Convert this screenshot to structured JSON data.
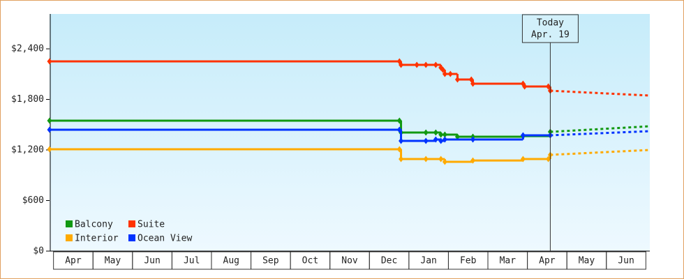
{
  "chart_data": {
    "type": "step-line",
    "months": [
      "Apr",
      "May",
      "Jun",
      "Jul",
      "Aug",
      "Sep",
      "Oct",
      "Nov",
      "Dec",
      "Jan",
      "Feb",
      "Mar",
      "Apr",
      "May",
      "Jun"
    ],
    "xlim": [
      -0.1,
      15.1
    ],
    "ylim": [
      0,
      2814
    ],
    "yticks": [
      {
        "value": 0,
        "label": "$0"
      },
      {
        "value": 600,
        "label": "$600"
      },
      {
        "value": 1200,
        "label": "$1,200"
      },
      {
        "value": 1800,
        "label": "$1,800"
      },
      {
        "value": 2400,
        "label": "$2,400"
      }
    ],
    "annotation": {
      "lines": [
        "Today",
        "Apr. 19"
      ],
      "x": 12.58
    },
    "series": [
      {
        "name": "Balcony",
        "color": "#119911",
        "x": [
          -0.1,
          8.76,
          8.8,
          9.43,
          9.68,
          9.81,
          9.91,
          10.23,
          10.62,
          11.89,
          12.58
        ],
        "values": [
          1548,
          1548,
          1407,
          1407,
          1407,
          1382,
          1382,
          1357,
          1357,
          1365,
          1415
        ],
        "forecast_x": [
          12.58,
          15.09
        ],
        "forecast_values": [
          1415,
          1481
        ]
      },
      {
        "name": "Suite",
        "color": "#ff3300",
        "x": [
          -0.1,
          8.76,
          8.8,
          9.2,
          9.43,
          9.68,
          9.81,
          9.86,
          9.91,
          10.05,
          10.23,
          10.58,
          10.62,
          11.89,
          11.93,
          12.53,
          12.58
        ],
        "values": [
          2251,
          2251,
          2210,
          2210,
          2210,
          2210,
          2177,
          2152,
          2102,
          2102,
          2036,
          2036,
          1986,
          1986,
          1953,
          1953,
          1903
        ],
        "forecast_x": [
          12.58,
          15.09
        ],
        "forecast_values": [
          1903,
          1846
        ]
      },
      {
        "name": "Interior",
        "color": "#ffaa00",
        "x": [
          -0.1,
          8.76,
          8.8,
          9.43,
          9.81,
          9.91,
          10.62,
          11.89,
          12.53,
          12.58
        ],
        "values": [
          1208,
          1208,
          1092,
          1092,
          1092,
          1059,
          1075,
          1092,
          1092,
          1142
        ],
        "forecast_x": [
          12.58,
          15.09
        ],
        "forecast_values": [
          1142,
          1200
        ]
      },
      {
        "name": "Ocean View",
        "color": "#0033ff",
        "x": [
          -0.1,
          8.76,
          8.8,
          9.43,
          9.68,
          9.81,
          9.91,
          10.62,
          11.89,
          12.58
        ],
        "values": [
          1440,
          1440,
          1308,
          1308,
          1324,
          1308,
          1324,
          1324,
          1374,
          1374
        ],
        "forecast_x": [
          12.58,
          15.09
        ],
        "forecast_values": [
          1374,
          1423
        ]
      }
    ]
  }
}
